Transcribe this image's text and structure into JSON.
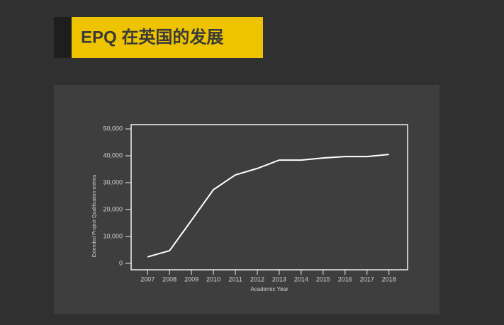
{
  "header": {
    "title": "EPQ 在英国的发展"
  },
  "chart_data": {
    "type": "line",
    "x_label": "Academic Year",
    "y_label": "Extended Project Qualification entries",
    "x": [
      2007,
      2008,
      2009,
      2010,
      2011,
      2012,
      2013,
      2014,
      2015,
      2016,
      2017,
      2018
    ],
    "series": [
      {
        "color": "#ffffff",
        "values": [
          2400,
          4700,
          16000,
          27400,
          32900,
          35300,
          38400,
          38400,
          39200,
          39700,
          39700,
          40500
        ]
      }
    ],
    "xlim": [
      2006.25,
      2018.85
    ],
    "xticks": [
      2007,
      2008,
      2009,
      2010,
      2011,
      2012,
      2013,
      2014,
      2015,
      2016,
      2017,
      2018
    ],
    "ylim": [
      -2400,
      51600
    ],
    "yticks": [
      0,
      {
        "value": 10000,
        "label": "10,000"
      },
      {
        "value": 20000,
        "label": "20,000"
      },
      {
        "value": 30000,
        "label": "30,000"
      },
      {
        "value": 40000,
        "label": "40,000"
      },
      {
        "value": 50000,
        "label": "50,000"
      }
    ],
    "grid": false
  }
}
